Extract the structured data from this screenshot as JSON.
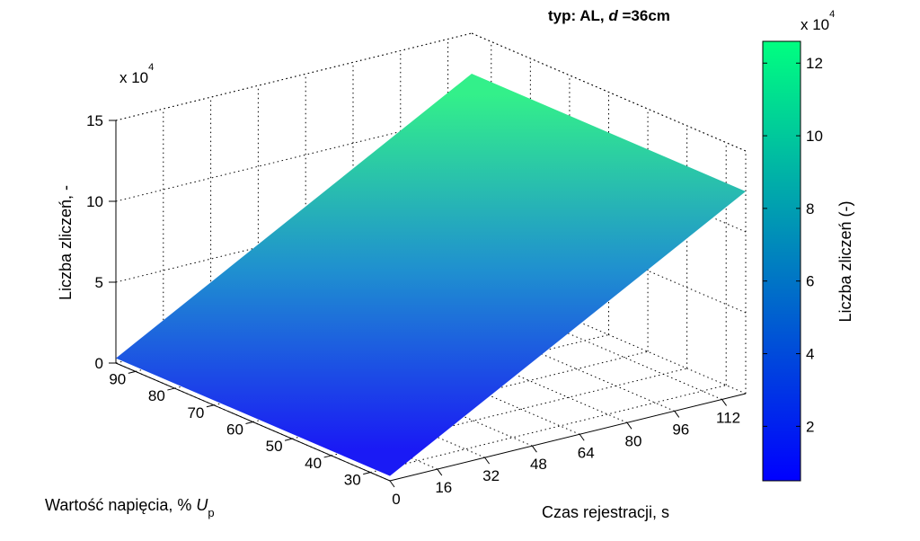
{
  "chart_data": {
    "type": "surface",
    "title": "typ: AL, d =36cm",
    "title_prefix": "typ: AL, ",
    "title_var": "d",
    "title_suffix": " =36cm",
    "xlabel": "Czas rejestracji, s",
    "ylabel_main": "Wartość napięcia, % ",
    "ylabel_var": "U",
    "ylabel_sub": "p",
    "zlabel": "Liczba zliczeń, -",
    "z_multiplier": "x 10",
    "z_multiplier_exp": "4",
    "xlim": [
      0,
      120
    ],
    "ylim": [
      25,
      95
    ],
    "zlim": [
      0,
      15
    ],
    "x_ticks": [
      0,
      16,
      32,
      48,
      64,
      80,
      96,
      112
    ],
    "y_ticks": [
      90,
      80,
      70,
      60,
      50,
      40,
      30
    ],
    "z_ticks": [
      0,
      5,
      10,
      15
    ],
    "grid": true,
    "colormap": "winter",
    "surface": {
      "x": [
        0,
        120
      ],
      "y_start": [
        25,
        95
      ],
      "z_at_x0": [
        0.3,
        0.3
      ],
      "z_at_x120": [
        12.5,
        12.5
      ]
    },
    "colorbar": {
      "label": "Liczba zliczeń (-)",
      "multiplier": "x 10",
      "multiplier_exp": "4",
      "ticks": [
        2,
        4,
        6,
        8,
        10,
        12
      ],
      "range": [
        0.5,
        12.6
      ],
      "color_low": "#0000ff",
      "color_high": "#00ff80"
    }
  }
}
